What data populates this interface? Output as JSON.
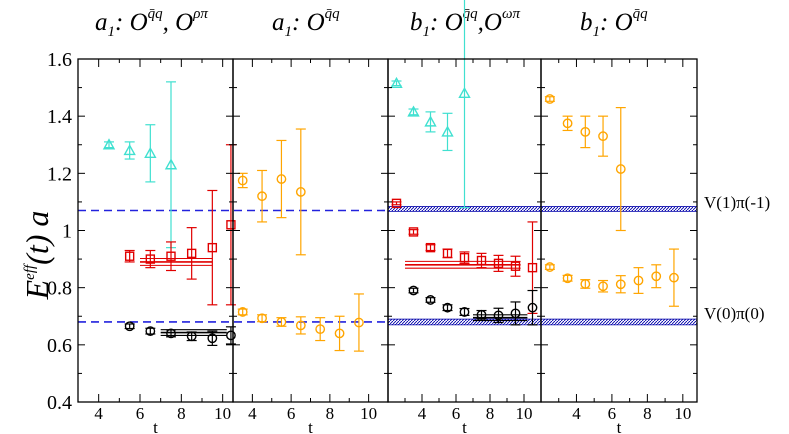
{
  "chart_data": {
    "type": "scatter",
    "ylabel": "E^eff(t) a",
    "ylabel_base": "E",
    "ylabel_sup": "eff",
    "ylabel_rest": "(t) a",
    "ylim": [
      0.4,
      1.6
    ],
    "yticks": [
      0.4,
      0.6,
      0.8,
      1,
      1.2,
      1.4,
      1.6
    ],
    "hline_levels": [
      0.68,
      1.07
    ],
    "bands": [
      {
        "name": "V(1)pi(-1)",
        "label": "V(1)π(-1)",
        "low": 1.067,
        "high": 1.084
      },
      {
        "name": "V(0)pi(0)",
        "label": "V(0)π(0)",
        "low": 0.67,
        "high": 0.69
      }
    ],
    "panels": [
      {
        "title": {
          "a": "a",
          "sub": "1",
          "op1": "O",
          "sup1": "q̄q",
          "op2": "O",
          "sup2": "ρπ"
        },
        "xlabel": "t",
        "xlim": [
          3,
          10.5
        ],
        "xticks": [
          4,
          6,
          8,
          10
        ],
        "series": [
          {
            "name": "cyan-triangles",
            "color": "#40e0d0",
            "marker": "triangle",
            "points": [
              [
                4.5,
                1.3,
                0.01
              ],
              [
                5.5,
                1.28,
                0.03
              ],
              [
                6.5,
                1.27,
                0.1
              ],
              [
                7.5,
                1.23,
                0.29
              ]
            ]
          },
          {
            "name": "red-squares",
            "color": "#e00000",
            "marker": "square",
            "points": [
              [
                5.5,
                0.91,
                0.02
              ],
              [
                6.5,
                0.9,
                0.03
              ],
              [
                7.5,
                0.91,
                0.05
              ],
              [
                8.5,
                0.92,
                0.09
              ],
              [
                9.5,
                0.94,
                0.2
              ],
              [
                10.4,
                1.02,
                0.28
              ]
            ]
          },
          {
            "name": "black-circles",
            "color": "#000000",
            "marker": "circle",
            "points": [
              [
                5.5,
                0.665,
                0.008
              ],
              [
                6.5,
                0.648,
                0.01
              ],
              [
                7.5,
                0.64,
                0.012
              ],
              [
                8.5,
                0.63,
                0.015
              ],
              [
                9.5,
                0.623,
                0.025
              ],
              [
                10.4,
                0.633,
                0.03
              ]
            ]
          }
        ],
        "fits": [
          {
            "color": "#e00000",
            "x": [
              6,
              9.5
            ],
            "center": 0.89,
            "spread": 0.012
          },
          {
            "color": "#000000",
            "x": [
              7,
              10.2
            ],
            "center": 0.643,
            "spread": 0.01
          }
        ]
      },
      {
        "title": {
          "a": "a",
          "sub": "1",
          "op1": "O",
          "sup1": "q̄q"
        },
        "xlabel": "t",
        "xlim": [
          3,
          11
        ],
        "xticks": [
          4,
          6,
          8,
          10
        ],
        "series": [
          {
            "name": "orange-circles",
            "color": "#ffa500",
            "marker": "circle",
            "points": [
              [
                3.5,
                1.175,
                0.025
              ],
              [
                4.5,
                1.12,
                0.09
              ],
              [
                5.5,
                1.18,
                0.135
              ],
              [
                6.5,
                1.135,
                0.22
              ],
              [
                3.5,
                0.715,
                0.01
              ],
              [
                4.5,
                0.693,
                0.012
              ],
              [
                5.5,
                0.68,
                0.015
              ],
              [
                6.5,
                0.668,
                0.03
              ],
              [
                7.5,
                0.655,
                0.04
              ],
              [
                8.5,
                0.64,
                0.06
              ],
              [
                9.5,
                0.678,
                0.1
              ]
            ]
          }
        ],
        "fits": []
      },
      {
        "title": {
          "a": "b",
          "sub": "1",
          "op1": "O",
          "sup1": "q̄q",
          "op2": "O",
          "sup2": "ωπ"
        },
        "xlabel": "t",
        "xlim": [
          2,
          11
        ],
        "xticks": [
          4,
          6,
          8,
          10
        ],
        "series": [
          {
            "name": "cyan-triangles",
            "color": "#40e0d0",
            "marker": "triangle",
            "points": [
              [
                2.5,
                1.515,
                0.008
              ],
              [
                3.5,
                1.415,
                0.01
              ],
              [
                4.5,
                1.38,
                0.035
              ],
              [
                5.5,
                1.345,
                0.065
              ],
              [
                6.5,
                1.48,
                0.4
              ]
            ]
          },
          {
            "name": "red-squares",
            "color": "#e00000",
            "marker": "square",
            "points": [
              [
                2.5,
                1.095,
                0.005
              ],
              [
                3.5,
                0.995,
                0.008
              ],
              [
                4.5,
                0.94,
                0.01
              ],
              [
                5.5,
                0.92,
                0.015
              ],
              [
                6.5,
                0.905,
                0.02
              ],
              [
                7.5,
                0.895,
                0.025
              ],
              [
                8.5,
                0.885,
                0.028
              ],
              [
                9.5,
                0.875,
                0.035
              ],
              [
                10.5,
                0.87,
                0.16
              ]
            ]
          },
          {
            "name": "black-circles",
            "color": "#000000",
            "marker": "circle",
            "points": [
              [
                3.5,
                0.79,
                0.008
              ],
              [
                4.5,
                0.757,
                0.008
              ],
              [
                5.5,
                0.73,
                0.01
              ],
              [
                6.5,
                0.715,
                0.012
              ],
              [
                7.5,
                0.705,
                0.015
              ],
              [
                8.5,
                0.703,
                0.025
              ],
              [
                9.5,
                0.71,
                0.04
              ],
              [
                10.5,
                0.73,
                0.06
              ]
            ]
          }
        ],
        "fits": [
          {
            "color": "#e00000",
            "x": [
              3,
              9.8
            ],
            "center": 0.88,
            "spread": 0.012
          },
          {
            "color": "#000000",
            "x": [
              7,
              10.2
            ],
            "center": 0.695,
            "spread": 0.01
          }
        ]
      },
      {
        "title": {
          "a": "b",
          "sub": "1",
          "op1": "O",
          "sup1": "q̄q"
        },
        "xlabel": "t",
        "xlim": [
          2,
          10.8
        ],
        "xticks": [
          4,
          6,
          8,
          10
        ],
        "series": [
          {
            "name": "orange-circles",
            "color": "#ffa500",
            "marker": "circle",
            "points": [
              [
                2.5,
                1.46,
                0.008
              ],
              [
                3.5,
                1.375,
                0.025
              ],
              [
                4.5,
                1.345,
                0.055
              ],
              [
                5.5,
                1.33,
                0.07
              ],
              [
                6.5,
                1.215,
                0.215
              ],
              [
                2.5,
                0.872,
                0.008
              ],
              [
                3.5,
                0.833,
                0.01
              ],
              [
                4.5,
                0.813,
                0.015
              ],
              [
                5.5,
                0.805,
                0.02
              ],
              [
                6.5,
                0.812,
                0.03
              ],
              [
                7.5,
                0.825,
                0.045
              ],
              [
                8.5,
                0.84,
                0.04
              ],
              [
                9.5,
                0.835,
                0.1
              ]
            ]
          }
        ],
        "fits": []
      }
    ]
  }
}
